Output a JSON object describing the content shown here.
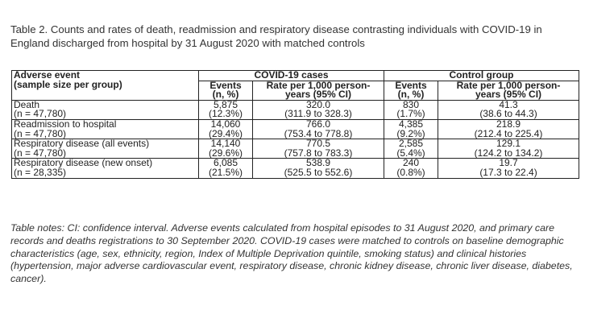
{
  "caption": "Table 2. Counts and rates of death, readmission and respiratory disease contrasting individuals with COVID-19 in England discharged from hospital by 31 August 2020 with matched controls",
  "header": {
    "adverse_event_line1": "Adverse event",
    "adverse_event_line2": "(sample size per group)",
    "covid_group": "COVID-19 cases",
    "control_group": "Control group",
    "events_line1": "Events",
    "events_line2": "(n, %)",
    "rate_line1": "Rate per 1,000 person-",
    "rate_line2": "years (95% CI)"
  },
  "rows": [
    {
      "event": "Death",
      "sample": "(n = 47,780)",
      "covid_events": "5,875",
      "covid_pct": "(12.3%)",
      "covid_rate": "320.0",
      "covid_ci": "(311.9 to 328.3)",
      "control_events": "830",
      "control_pct": "(1.7%)",
      "control_rate": "41.3",
      "control_ci": "(38.6 to 44.3)"
    },
    {
      "event": "Readmission to hospital",
      "sample": "(n = 47,780)",
      "covid_events": "14,060",
      "covid_pct": "(29.4%)",
      "covid_rate": "766.0",
      "covid_ci": "(753.4 to 778.8)",
      "control_events": "4,385",
      "control_pct": "(9.2%)",
      "control_rate": "218.9",
      "control_ci": "(212.4 to 225.4)"
    },
    {
      "event": "Respiratory disease (all events)",
      "sample": "(n = 47,780)",
      "covid_events": "14,140",
      "covid_pct": "(29.6%)",
      "covid_rate": "770.5",
      "covid_ci": "(757.8 to 783.3)",
      "control_events": "2,585",
      "control_pct": "(5.4%)",
      "control_rate": "129.1",
      "control_ci": "(124.2 to 134.2)"
    },
    {
      "event": "Respiratory disease (new onset)",
      "sample": "(n = 28,335)",
      "covid_events": "6,085",
      "covid_pct": "(21.5%)",
      "covid_rate": "538.9",
      "covid_ci": "(525.5 to 552.6)",
      "control_events": "240",
      "control_pct": "(0.8%)",
      "control_rate": "19.7",
      "control_ci": "(17.3 to 22.4)"
    }
  ],
  "notes": "Table notes: CI: confidence interval. Adverse events calculated from hospital episodes to 31 August 2020, and primary care records and deaths registrations to 30 September 2020. COVID-19 cases were matched to controls on baseline demographic characteristics (age, sex, ethnicity, region, Index of Multiple Deprivation quintile, smoking status) and clinical histories (hypertension, major adverse cardiovascular event, respiratory disease, chronic kidney disease, chronic liver disease, diabetes, cancer)."
}
